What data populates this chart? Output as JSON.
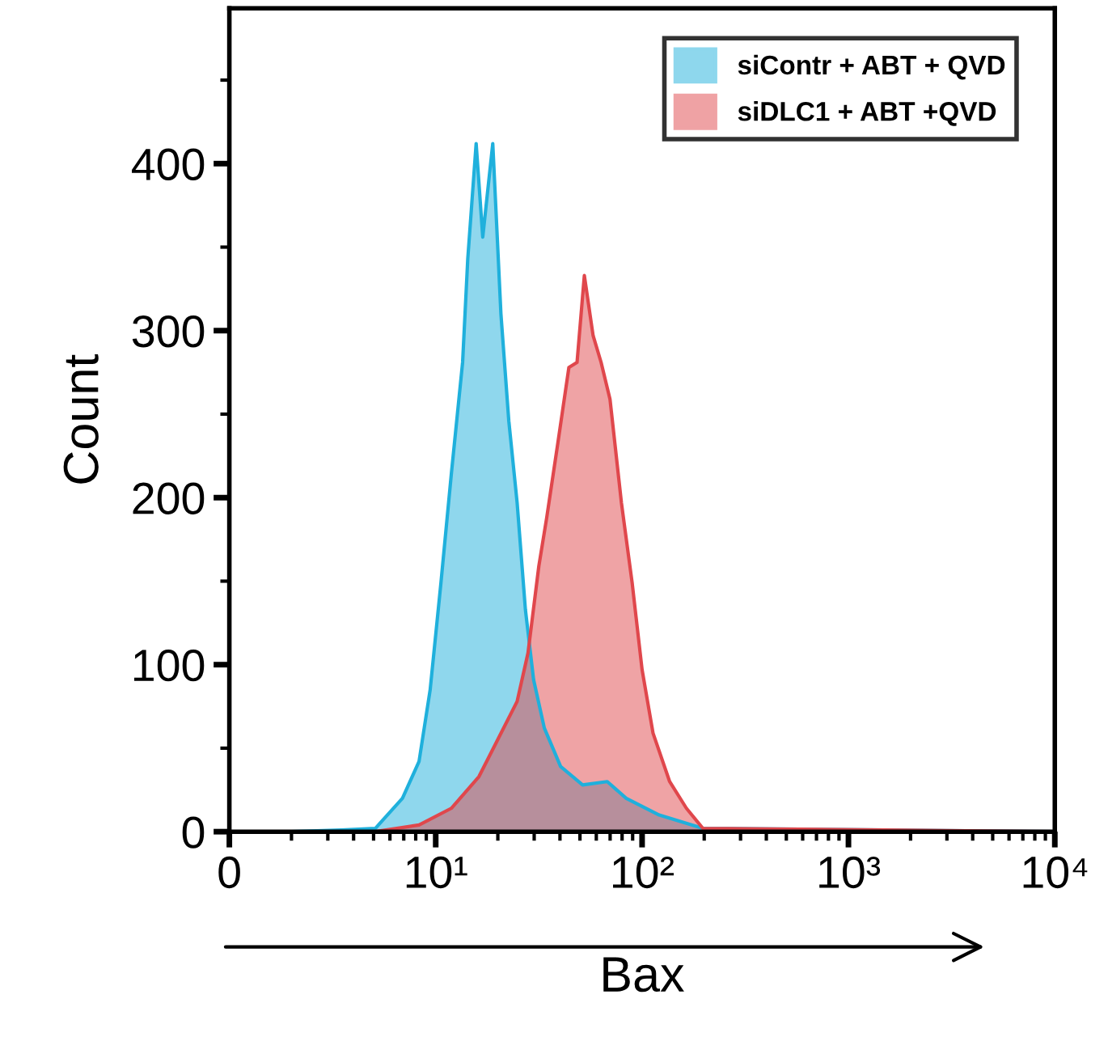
{
  "chart_data": {
    "type": "area",
    "xlabel": "Bax",
    "ylabel": "Count",
    "log": "x",
    "xlim": [
      0,
      10000
    ],
    "ylim": [
      0,
      493
    ],
    "xticks": [
      0,
      {
        "value": 10,
        "label": "10¹"
      },
      {
        "value": 100,
        "label": "10²"
      },
      {
        "value": 1000,
        "label": "10³"
      },
      {
        "value": 10000,
        "label": "10⁴"
      }
    ],
    "yticks": [
      0,
      100,
      200,
      300,
      400
    ],
    "grid": false,
    "legend": "top right",
    "series": [
      {
        "name": "siContr + ABT + QVD",
        "color": "#1fb0dc",
        "x": [
          2,
          3.5,
          5.1,
          6.9,
          8.3,
          9.4,
          10.6,
          11.9,
          13.5,
          14.3,
          15.7,
          16.9,
          18.9,
          20.7,
          22.6,
          24.8,
          27.2,
          29.8,
          33.6,
          40.3,
          51.5,
          67.8,
          83.7,
          121,
          197,
          10000
        ],
        "values": [
          0,
          1,
          2,
          20,
          42,
          85,
          149,
          214,
          281,
          343,
          412,
          356,
          412,
          310,
          246,
          197,
          133,
          91,
          62,
          39,
          28,
          30,
          20,
          10,
          2,
          0
        ]
      },
      {
        "name": "siDLC1 + ABT +QVD",
        "color": "#e0474c",
        "x": [
          2,
          5.1,
          8.3,
          11.9,
          16.2,
          19.4,
          24.8,
          28,
          31.6,
          34.5,
          39.1,
          44.2,
          48.4,
          52.5,
          57.9,
          63.3,
          69.9,
          79.4,
          89.5,
          100,
          113,
          136,
          164,
          197,
          10000
        ],
        "values": [
          0,
          0,
          4,
          14,
          33,
          52,
          78,
          107,
          159,
          188,
          233,
          278,
          281,
          333,
          297,
          281,
          259,
          197,
          149,
          97,
          59,
          30,
          14,
          2,
          0
        ]
      }
    ]
  }
}
